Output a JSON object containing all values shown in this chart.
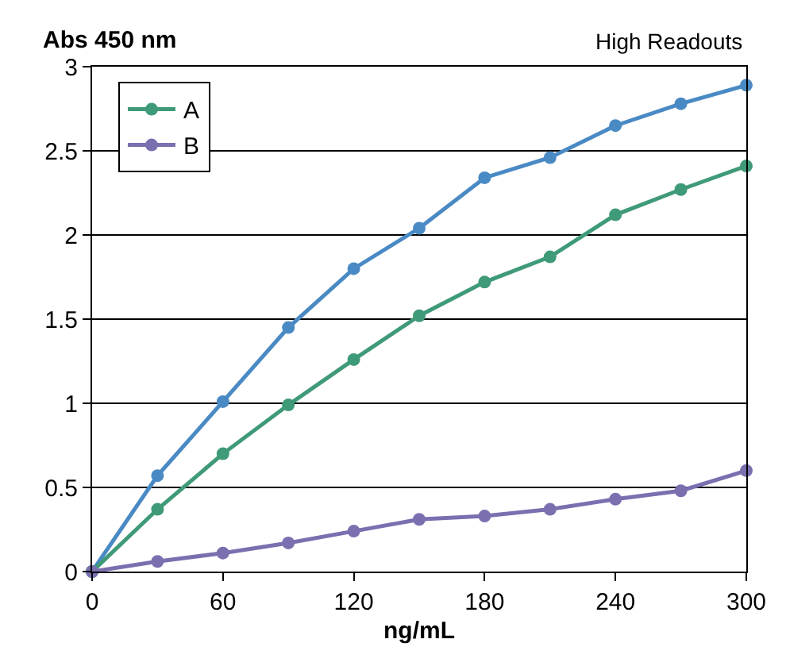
{
  "chart_data": {
    "type": "line",
    "title": "High Readouts",
    "ylabel": "Abs 450 nm",
    "xlabel": "ng/mL",
    "x": [
      0,
      30,
      60,
      90,
      120,
      150,
      180,
      210,
      240,
      270,
      300
    ],
    "series": [
      {
        "color": "#4a8ac4",
        "values": [
          0,
          0.57,
          1.01,
          1.45,
          1.8,
          2.04,
          2.34,
          2.46,
          2.65,
          2.78,
          2.89
        ]
      },
      {
        "name": "A",
        "color": "#3f9a78",
        "values": [
          0,
          0.37,
          0.7,
          0.99,
          1.26,
          1.52,
          1.72,
          1.87,
          2.12,
          2.27,
          2.41
        ]
      },
      {
        "name": "B",
        "color": "#7b6fb0",
        "values": [
          0,
          0.06,
          0.11,
          0.17,
          0.24,
          0.31,
          0.33,
          0.37,
          0.43,
          0.48,
          0.6
        ]
      }
    ],
    "xlim": [
      0,
      300
    ],
    "xticks": [
      0,
      60,
      120,
      180,
      240,
      300
    ],
    "ylim": [
      0,
      3
    ],
    "yticks": [
      0,
      0.5,
      1,
      1.5,
      2,
      2.5,
      3
    ],
    "grid": "y",
    "legend": "top left",
    "marker": "circle",
    "line_style": "solid"
  }
}
